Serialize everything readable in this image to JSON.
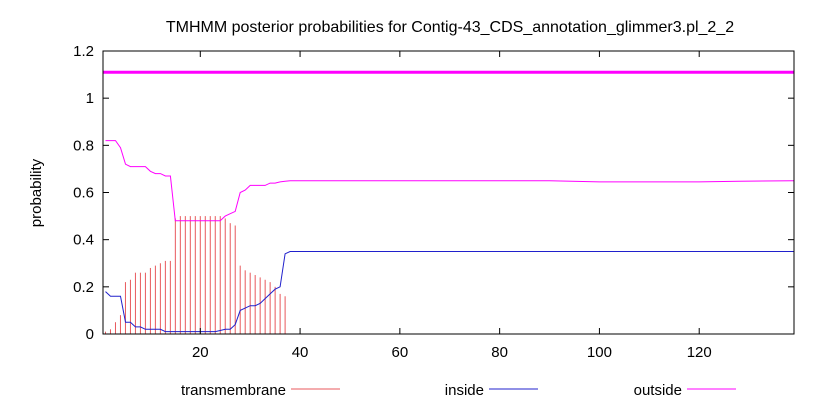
{
  "chart_data": {
    "type": "line",
    "title": "TMHMM posterior probabilities for Contig-43_CDS_annotation_glimmer3.pl_2_2",
    "xlabel": "",
    "ylabel": "probability",
    "xlim": [
      0.5,
      139
    ],
    "ylim": [
      0,
      1.2
    ],
    "xticks": [
      20,
      40,
      60,
      80,
      100,
      120
    ],
    "yticks": [
      0,
      0.2,
      0.4,
      0.6,
      0.8,
      1,
      1.2
    ],
    "ytick_labels": [
      "0",
      "0.2",
      "0.4",
      "0.6",
      "0.8",
      "1",
      "1.2"
    ],
    "grid": false,
    "legend_position": "bottom",
    "colors": {
      "transmembrane": "#e8585c",
      "inside": "#2020cc",
      "outside": "#ff00ff",
      "topology_bar": "#ff00ff",
      "axis": "#000000"
    },
    "topology_bar_y": 1.11,
    "series": [
      {
        "name": "transmembrane",
        "style": "impulses",
        "x": [
          1,
          2,
          3,
          4,
          5,
          6,
          7,
          8,
          9,
          10,
          11,
          12,
          13,
          14,
          15,
          16,
          17,
          18,
          19,
          20,
          21,
          22,
          23,
          24,
          25,
          26,
          27,
          28,
          29,
          30,
          31,
          32,
          33,
          34,
          35,
          36,
          37,
          38,
          39,
          40
        ],
        "values": [
          0.01,
          0.02,
          0.05,
          0.08,
          0.22,
          0.23,
          0.26,
          0.26,
          0.26,
          0.28,
          0.29,
          0.3,
          0.31,
          0.31,
          0.49,
          0.5,
          0.5,
          0.5,
          0.5,
          0.5,
          0.5,
          0.5,
          0.5,
          0.5,
          0.49,
          0.47,
          0.46,
          0.29,
          0.27,
          0.26,
          0.25,
          0.24,
          0.23,
          0.22,
          0.2,
          0.17,
          0.16,
          0.0,
          0.0,
          0.0
        ]
      },
      {
        "name": "inside",
        "style": "line",
        "x": [
          1,
          2,
          3,
          4,
          5,
          6,
          7,
          8,
          9,
          10,
          11,
          12,
          13,
          14,
          15,
          16,
          17,
          18,
          19,
          20,
          21,
          22,
          23,
          24,
          25,
          26,
          27,
          28,
          29,
          30,
          31,
          32,
          33,
          34,
          35,
          36,
          37,
          38,
          39,
          40,
          45,
          50,
          60,
          70,
          80,
          90,
          100,
          110,
          120,
          128,
          139
        ],
        "values": [
          0.18,
          0.16,
          0.16,
          0.16,
          0.05,
          0.05,
          0.03,
          0.03,
          0.02,
          0.02,
          0.02,
          0.02,
          0.01,
          0.01,
          0.01,
          0.01,
          0.01,
          0.01,
          0.01,
          0.01,
          0.01,
          0.01,
          0.01,
          0.015,
          0.02,
          0.02,
          0.04,
          0.1,
          0.11,
          0.12,
          0.12,
          0.13,
          0.15,
          0.17,
          0.19,
          0.2,
          0.34,
          0.35,
          0.35,
          0.35,
          0.35,
          0.35,
          0.35,
          0.35,
          0.35,
          0.35,
          0.35,
          0.35,
          0.35,
          0.35,
          0.35
        ]
      },
      {
        "name": "outside",
        "style": "line",
        "x": [
          1,
          2,
          3,
          4,
          5,
          6,
          7,
          8,
          9,
          10,
          11,
          12,
          13,
          14,
          15,
          16,
          17,
          18,
          19,
          20,
          21,
          22,
          23,
          24,
          25,
          26,
          27,
          28,
          29,
          30,
          31,
          32,
          33,
          34,
          35,
          36,
          37,
          38,
          39,
          40,
          45,
          50,
          60,
          70,
          80,
          90,
          100,
          110,
          120,
          128,
          139
        ],
        "values": [
          0.82,
          0.82,
          0.82,
          0.79,
          0.72,
          0.71,
          0.71,
          0.71,
          0.71,
          0.69,
          0.68,
          0.68,
          0.67,
          0.67,
          0.48,
          0.48,
          0.48,
          0.48,
          0.48,
          0.48,
          0.48,
          0.48,
          0.48,
          0.48,
          0.5,
          0.51,
          0.52,
          0.6,
          0.61,
          0.63,
          0.63,
          0.63,
          0.63,
          0.64,
          0.64,
          0.645,
          0.648,
          0.65,
          0.65,
          0.65,
          0.65,
          0.65,
          0.65,
          0.65,
          0.65,
          0.65,
          0.645,
          0.645,
          0.645,
          0.648,
          0.65
        ]
      }
    ]
  }
}
